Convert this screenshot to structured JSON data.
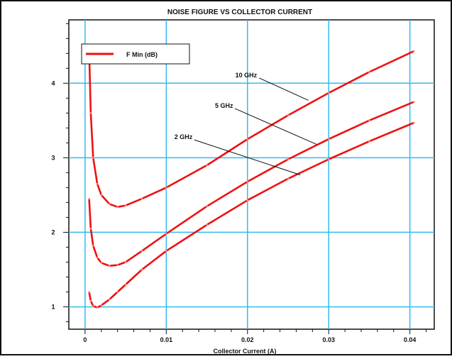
{
  "chart_data": {
    "type": "line",
    "title": "NOISE FIGURE VS COLLECTOR CURRENT",
    "xlabel": "Collector Current (A)",
    "ylabel": "",
    "xlim": [
      -0.002,
      0.043
    ],
    "ylim": [
      0.7,
      4.85
    ],
    "grid": true,
    "legend_position": "top-left",
    "legend": [
      "F Min (dB)"
    ],
    "x_ticks": [
      0,
      0.01,
      0.02,
      0.03,
      0.04
    ],
    "x_tick_labels": [
      "0",
      "0.01",
      "0.02",
      "0.03",
      "0.04"
    ],
    "y_ticks": [
      1,
      2,
      3,
      4
    ],
    "y_tick_labels": [
      "1",
      "2",
      "3",
      "4"
    ],
    "colors": {
      "series": "#ee1111",
      "grid": "#33bbee",
      "axis": "#111111",
      "frame": "#111111"
    },
    "series": [
      {
        "name": "10 GHz",
        "x": [
          0.0005,
          0.0007,
          0.001,
          0.0015,
          0.002,
          0.003,
          0.004,
          0.005,
          0.007,
          0.01,
          0.015,
          0.02,
          0.025,
          0.03,
          0.035,
          0.0405
        ],
        "y": [
          4.45,
          3.6,
          3.0,
          2.65,
          2.5,
          2.38,
          2.34,
          2.36,
          2.45,
          2.6,
          2.9,
          3.25,
          3.57,
          3.87,
          4.15,
          4.43
        ]
      },
      {
        "name": "5 GHz",
        "x": [
          0.0005,
          0.0007,
          0.001,
          0.0015,
          0.002,
          0.003,
          0.004,
          0.005,
          0.007,
          0.01,
          0.015,
          0.02,
          0.025,
          0.03,
          0.035,
          0.0405
        ],
        "y": [
          2.45,
          2.05,
          1.82,
          1.66,
          1.59,
          1.55,
          1.56,
          1.6,
          1.75,
          1.98,
          2.35,
          2.68,
          2.98,
          3.25,
          3.5,
          3.75
        ]
      },
      {
        "name": "2 GHz",
        "x": [
          0.0005,
          0.0007,
          0.001,
          0.0015,
          0.002,
          0.003,
          0.004,
          0.005,
          0.007,
          0.01,
          0.015,
          0.02,
          0.025,
          0.03,
          0.035,
          0.0405
        ],
        "y": [
          1.2,
          1.08,
          1.01,
          0.99,
          1.02,
          1.1,
          1.2,
          1.3,
          1.5,
          1.75,
          2.1,
          2.43,
          2.72,
          2.98,
          3.22,
          3.47
        ]
      }
    ],
    "annotations": [
      {
        "text": "10 GHz",
        "series": "10 GHz",
        "label_at": [
          0.0185,
          4.08
        ],
        "points_to": [
          0.0275,
          3.77
        ]
      },
      {
        "text": "5 GHz",
        "series": "5 GHz",
        "label_at": [
          0.016,
          3.67
        ],
        "points_to": [
          0.0285,
          3.18
        ]
      },
      {
        "text": "2 GHz",
        "series": "2 GHz",
        "label_at": [
          0.011,
          3.25
        ],
        "points_to": [
          0.0265,
          2.77
        ]
      }
    ]
  }
}
